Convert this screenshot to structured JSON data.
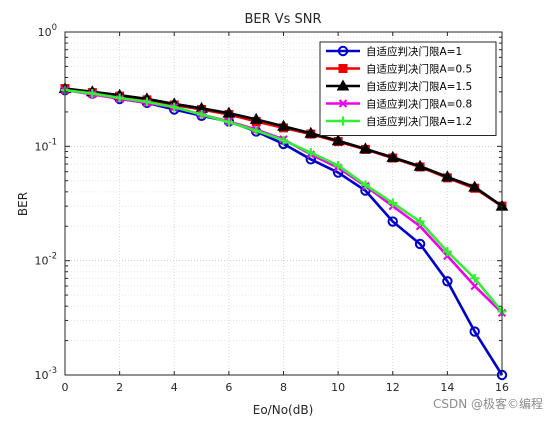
{
  "chart_data": {
    "type": "line",
    "title": "BER Vs SNR",
    "xlabel": "Eo/No(dB)",
    "ylabel": "BER",
    "xlim": [
      0,
      16
    ],
    "ylim": [
      0.001,
      1
    ],
    "yscale": "log",
    "grid": true,
    "legend_position": "top-right",
    "x_ticks": [
      "0",
      "2",
      "4",
      "6",
      "8",
      "10",
      "12",
      "14",
      "16"
    ],
    "y_ticks": [
      {
        "value": 1,
        "mantissa": "10",
        "exp": "0"
      },
      {
        "value": 0.1,
        "mantissa": "10",
        "exp": "-1"
      },
      {
        "value": 0.01,
        "mantissa": "10",
        "exp": "-2"
      },
      {
        "value": 0.001,
        "mantissa": "10",
        "exp": "-3"
      }
    ],
    "x": [
      0,
      1,
      2,
      3,
      4,
      5,
      6,
      7,
      8,
      9,
      10,
      11,
      12,
      13,
      14,
      15,
      16
    ],
    "series": [
      {
        "name": "自适应判决门限A=1",
        "color": "#0000cc",
        "marker": "circle",
        "values": [
          0.31,
          0.29,
          0.26,
          0.24,
          0.21,
          0.185,
          0.165,
          0.135,
          0.105,
          0.077,
          0.059,
          0.041,
          0.022,
          0.014,
          0.0066,
          0.0024,
          0.001
        ]
      },
      {
        "name": "自适应判决门限A=0.5",
        "color": "#ee0000",
        "marker": "square",
        "values": [
          0.32,
          0.295,
          0.275,
          0.255,
          0.23,
          0.21,
          0.19,
          0.165,
          0.145,
          0.128,
          0.11,
          0.094,
          0.079,
          0.066,
          0.053,
          0.043,
          0.03
        ]
      },
      {
        "name": "自适应判决门限A=1.5",
        "color": "#000000",
        "marker": "triangle",
        "values": [
          0.32,
          0.3,
          0.28,
          0.26,
          0.235,
          0.215,
          0.195,
          0.172,
          0.15,
          0.13,
          0.112,
          0.095,
          0.08,
          0.067,
          0.054,
          0.044,
          0.03
        ]
      },
      {
        "name": "自适应判决门限A=0.8",
        "color": "#ee00ee",
        "marker": "x",
        "values": [
          0.31,
          0.285,
          0.26,
          0.24,
          0.22,
          0.19,
          0.165,
          0.14,
          0.115,
          0.085,
          0.065,
          0.045,
          0.03,
          0.02,
          0.011,
          0.006,
          0.0035
        ]
      },
      {
        "name": "自适应判决门限A=1.2",
        "color": "#33ee33",
        "marker": "plus",
        "values": [
          0.31,
          0.29,
          0.265,
          0.245,
          0.22,
          0.19,
          0.163,
          0.137,
          0.113,
          0.088,
          0.068,
          0.046,
          0.032,
          0.022,
          0.012,
          0.007,
          0.0036
        ]
      }
    ]
  },
  "watermark": "CSDN @极客©编程"
}
